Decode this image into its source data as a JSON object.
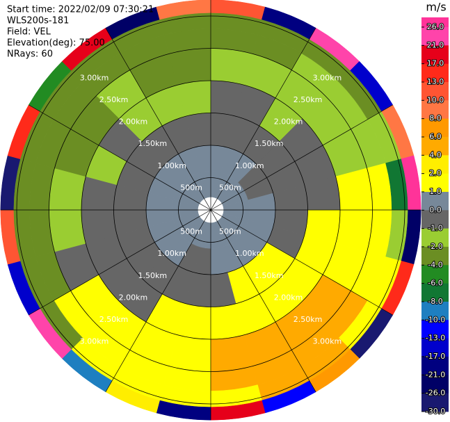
{
  "chart_data": {
    "type": "ppi",
    "annotations": [
      "Start time: 2022/02/09 07:30:21",
      "WLS200s-181",
      "Field: VEL",
      "Elevation(deg): 75.00",
      "NRays: 60"
    ],
    "range_rings": [
      {
        "value": 0.5,
        "label": "500m"
      },
      {
        "value": 1.0,
        "label": "1.00km"
      },
      {
        "value": 1.5,
        "label": "1.50km"
      },
      {
        "value": 2.0,
        "label": "2.00km"
      },
      {
        "value": 2.5,
        "label": "2.50km"
      },
      {
        "value": 3.0,
        "label": "3.00km"
      }
    ],
    "range_bins": [
      0.2,
      0.6,
      1.0,
      1.5,
      2.0,
      2.5,
      2.8,
      3.05,
      3.25
    ],
    "values": [
      [
        0.5,
        0.5,
        -0.5,
        -0.5,
        -1.5,
        -3,
        -3,
        12
      ],
      [
        0.5,
        0.5,
        -0.5,
        -0.5,
        -1.5,
        -3,
        -3,
        -20
      ],
      [
        0.5,
        0.5,
        -0.5,
        -1.5,
        -1.5,
        -1.5,
        -3,
        24
      ],
      [
        0.5,
        -0.5,
        -0.5,
        -0.5,
        -1.5,
        -1.5,
        -3,
        -15
      ],
      [
        0.5,
        -0.5,
        -0.5,
        -0.5,
        -1.5,
        -1.5,
        -1.5,
        9
      ],
      [
        0.5,
        0.5,
        -0.5,
        -0.5,
        1.5,
        1.5,
        -7,
        28
      ],
      [
        0.5,
        0.5,
        -0.5,
        1.5,
        1.5,
        1.5,
        -1.5,
        -24
      ],
      [
        0.5,
        0.5,
        -0.5,
        1.5,
        1.5,
        1.5,
        1.5,
        15
      ],
      [
        0.5,
        0.5,
        1.5,
        1.5,
        5,
        5,
        1.5,
        -28
      ],
      [
        0.5,
        0.5,
        1.5,
        1.5,
        5,
        5,
        5,
        7
      ],
      [
        0.5,
        0.5,
        1.5,
        1.5,
        5,
        5,
        5,
        -11
      ],
      [
        0.5,
        0.5,
        -0.5,
        1.5,
        5,
        5,
        1.5,
        19
      ],
      [
        0.5,
        -0.5,
        -0.5,
        1.5,
        1.5,
        1.5,
        1.5,
        -19
      ],
      [
        0.5,
        -0.5,
        -0.5,
        1.5,
        1.5,
        1.5,
        1.5,
        3
      ],
      [
        0.5,
        0.5,
        -0.5,
        -0.5,
        1.5,
        1.5,
        1.5,
        -9
      ],
      [
        0.5,
        0.5,
        -0.5,
        -0.5,
        1.5,
        1.5,
        -3,
        22
      ],
      [
        0.5,
        0.5,
        -0.5,
        -0.5,
        -0.5,
        -3,
        -3,
        -14
      ],
      [
        0.5,
        0.5,
        -0.5,
        -0.5,
        -1.5,
        -3,
        -3,
        11
      ],
      [
        0.5,
        0.5,
        -0.5,
        -0.5,
        -1.5,
        -3,
        -3,
        -27
      ],
      [
        0.5,
        0.5,
        -0.5,
        -1.5,
        -3,
        -3,
        -3,
        14
      ],
      [
        0.5,
        0.5,
        -0.5,
        -0.5,
        -3,
        -3,
        -3,
        -5
      ],
      [
        0.5,
        0.5,
        -0.5,
        -1.5,
        -1.5,
        -3,
        -3,
        18
      ],
      [
        0.5,
        0.5,
        -0.5,
        -1.5,
        -3,
        -3,
        -3,
        -22
      ],
      [
        0.5,
        0.5,
        -0.5,
        -1.5,
        -3,
        -3,
        -3,
        9
      ]
    ],
    "colorbar": {
      "label": "m/s",
      "ticks": [
        {
          "value": 26,
          "label": "26.0"
        },
        {
          "value": 21,
          "label": "21.0"
        },
        {
          "value": 17,
          "label": "17.0"
        },
        {
          "value": 13,
          "label": "13.0"
        },
        {
          "value": 10,
          "label": "10.0"
        },
        {
          "value": 8,
          "label": "8.0"
        },
        {
          "value": 6,
          "label": "6.0"
        },
        {
          "value": 4,
          "label": "4.0"
        },
        {
          "value": 2,
          "label": "2.0"
        },
        {
          "value": 1,
          "label": "1.0"
        },
        {
          "value": 0,
          "label": "0.0"
        },
        {
          "value": -1,
          "label": "-1.0"
        },
        {
          "value": -2,
          "label": "-2.0"
        },
        {
          "value": -4,
          "label": "-4.0"
        },
        {
          "value": -6,
          "label": "-6.0"
        },
        {
          "value": -8,
          "label": "-8.0"
        },
        {
          "value": -10,
          "label": "-10.0"
        },
        {
          "value": -13,
          "label": "-13.0"
        },
        {
          "value": -17,
          "label": "-17.0"
        },
        {
          "value": -21,
          "label": "-21.0"
        },
        {
          "value": -26,
          "label": "-26.0"
        },
        {
          "value": -30,
          "label": "-30.0"
        }
      ],
      "colors": [
        "#ff3399",
        "#ff44aa",
        "#e6001a",
        "#ff2a1a",
        "#ff5533",
        "#ff7744",
        "#ff9900",
        "#ffaa00",
        "#ffee00",
        "#ffff00",
        "#778899",
        "#666666",
        "#9acd32",
        "#6b8e23",
        "#228b22",
        "#117733",
        "#1e7fc0",
        "#0000ff",
        "#0000cc",
        "#000080",
        "#000066",
        "#191970"
      ]
    }
  }
}
